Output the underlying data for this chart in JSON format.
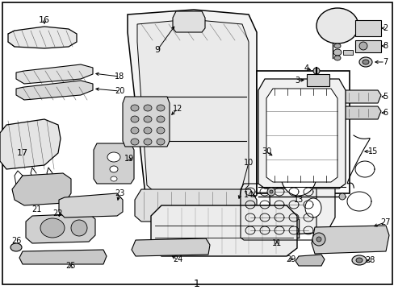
{
  "figsize": [
    4.89,
    3.6
  ],
  "dpi": 100,
  "background_color": "#ffffff",
  "border_color": "#000000",
  "line_color": "#000000",
  "gray_fill": "#d8d8d8",
  "light_fill": "#f0f0f0",
  "mid_fill": "#c8c8c8"
}
